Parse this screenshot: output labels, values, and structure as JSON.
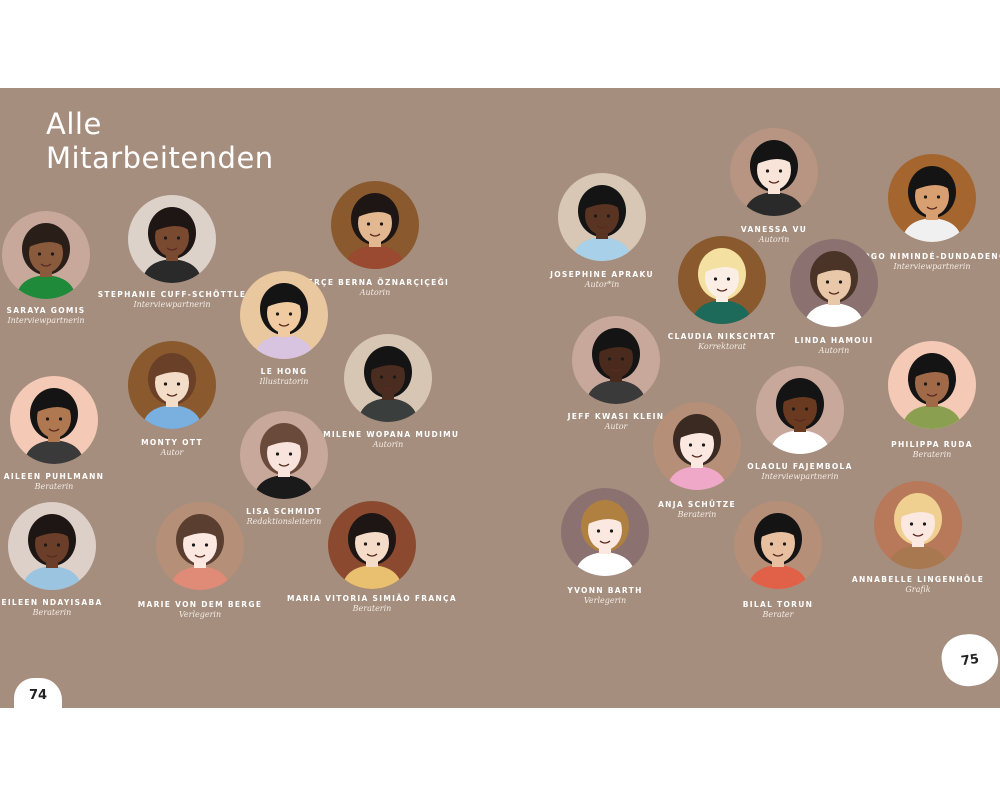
{
  "title_lines": [
    "Alle",
    "Mitarbeitenden"
  ],
  "page_numbers": {
    "left": "74",
    "right": "75"
  },
  "colors": {
    "page_background": "#a58e7e",
    "text": "#ffffff"
  },
  "people": [
    {
      "name": "Saraya Gomis",
      "role": "Interviewpartnerin",
      "circle": "#c9a89c",
      "skin": "#8a5a3c",
      "hair": "#2a1e18",
      "shirt": "#1e8a3a"
    },
    {
      "name": "Stephanie Cuff-Schöttle",
      "role": "Interviewpartnerin",
      "circle": "#ddd2c9",
      "skin": "#7a4a30",
      "hair": "#1e1614",
      "shirt": "#2a2a2a"
    },
    {
      "name": "Serçe Berna Öznarçiçeği",
      "role": "Autorin",
      "circle": "#8a5a2e",
      "skin": "#e3b890",
      "hair": "#1e1614",
      "shirt": "#9a4a30"
    },
    {
      "name": "Le Hong",
      "role": "Illustratorin",
      "circle": "#e9c79f",
      "skin": "#f0caa0",
      "hair": "#141414",
      "shirt": "#d8c4e0"
    },
    {
      "name": "Monty Ott",
      "role": "Autor",
      "circle": "#8a5a2e",
      "skin": "#f3dcc8",
      "hair": "#6a4028",
      "shirt": "#7ab0e0"
    },
    {
      "name": "Emilene Wopana Mudimu",
      "role": "Autorin",
      "circle": "#d8c6b4",
      "skin": "#4a2c20",
      "hair": "#141414",
      "shirt": "#3a3e3c"
    },
    {
      "name": "Aileen Puhlmann",
      "role": "Beraterin",
      "circle": "#f4c9b6",
      "skin": "#b07850",
      "hair": "#141414",
      "shirt": "#3a3a3a"
    },
    {
      "name": "Lisa Schmidt",
      "role": "Redaktionsleiterin",
      "circle": "#c9a89c",
      "skin": "#f8e4dc",
      "hair": "#6a4a3a",
      "shirt": "#1a1a1a"
    },
    {
      "name": "Eileen Ndayisaba",
      "role": "Beraterin",
      "circle": "#ddd0c8",
      "skin": "#6a3e28",
      "hair": "#1e1614",
      "shirt": "#9ac4e0"
    },
    {
      "name": "Marie von dem Berge",
      "role": "Verlegerin",
      "circle": "#b58f77",
      "skin": "#fbe8e0",
      "hair": "#5a3e30",
      "shirt": "#e08a78"
    },
    {
      "name": "Maria Vitoria Simião França",
      "role": "Beraterin",
      "circle": "#8b4a30",
      "skin": "#f4dcc8",
      "hair": "#1e1614",
      "shirt": "#e8c070"
    },
    {
      "name": "Josephine Apraku",
      "role": "Autor*in",
      "circle": "#d7c7b4",
      "skin": "#5a3422",
      "hair": "#141414",
      "shirt": "#a8d0e8"
    },
    {
      "name": "Vanessa Vu",
      "role": "Autorin",
      "circle": "#b89582",
      "skin": "#f8e4d8",
      "hair": "#141414",
      "shirt": "#2a2a2a"
    },
    {
      "name": "Tebogo Nimindé-Dundadengar",
      "role": "Interviewpartnerin",
      "circle": "#a4652e",
      "skin": "#d8a070",
      "hair": "#141414",
      "shirt": "#f0f0f0"
    },
    {
      "name": "Claudia Nikschtat",
      "role": "Korrektorat",
      "circle": "#8a5a2e",
      "skin": "#fbeee4",
      "hair": "#f4e0a0",
      "shirt": "#1e6a5a"
    },
    {
      "name": "Linda Hamoui",
      "role": "Autorin",
      "circle": "#8b7270",
      "skin": "#e8c8a8",
      "hair": "#4a3428",
      "shirt": "#ffffff"
    },
    {
      "name": "Jeff Kwasi Klein",
      "role": "Autor",
      "circle": "#c9a89c",
      "skin": "#4a2a1c",
      "hair": "#141414",
      "shirt": "#3a3a3a"
    },
    {
      "name": "Philippa Ruda",
      "role": "Beraterin",
      "circle": "#f4c9b6",
      "skin": "#a06a48",
      "hair": "#141414",
      "shirt": "#8aa050"
    },
    {
      "name": "Olaolu Fajembola",
      "role": "Interviewpartnerin",
      "circle": "#c9a89c",
      "skin": "#6a3a20",
      "hair": "#141414",
      "shirt": "#ffffff"
    },
    {
      "name": "Anja Schütze",
      "role": "Beraterin",
      "circle": "#b58f77",
      "skin": "#fbe8e0",
      "hair": "#3a2a22",
      "shirt": "#f0a8c8"
    },
    {
      "name": "Yvonn Barth",
      "role": "Verlegerin",
      "circle": "#8b7270",
      "skin": "#fbe8e0",
      "hair": "#b08040",
      "shirt": "#ffffff"
    },
    {
      "name": "Bilal Torun",
      "role": "Berater",
      "circle": "#b58f77",
      "skin": "#e8c0a0",
      "hair": "#141414",
      "shirt": "#e06048"
    },
    {
      "name": "Annabelle Lingenhöle",
      "role": "Grafik",
      "circle": "#b8785a",
      "skin": "#fbe8e0",
      "hair": "#f0d090",
      "shirt": "#a87850"
    }
  ]
}
